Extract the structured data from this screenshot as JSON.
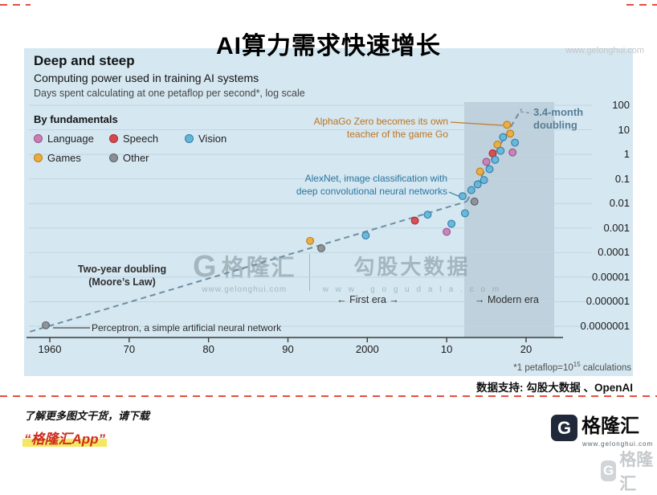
{
  "page": {
    "title": "AI算力需求快速增长",
    "corner_watermark": "www.gelonghui.com",
    "data_support": "数据支持: 勾股大数据 、OpenAI",
    "promo_line1": "了解更多图文干货，请下载",
    "promo_line2": "“格隆汇App”",
    "brand": {
      "logo": "G",
      "name": "格隆汇",
      "url": "www.gelonghui.com"
    },
    "brand_shadow": {
      "logo": "G",
      "name": "格隆汇"
    }
  },
  "watermark_center": {
    "glh_logo": "G",
    "glh_name": "格隆汇",
    "glh_url": "www.gelonghui.com",
    "gogu_name": "勾股大数据",
    "gogu_url": "w w w . g o g u d a t a . c o m"
  },
  "chart_data": {
    "type": "scatter",
    "title": "Deep and steep",
    "subtitle": "Computing power used in training AI systems",
    "unit_note": "Days spent calculating at one petaflop per second*, log scale",
    "legend_title": "By fundamentals",
    "legend_rows": [
      [
        "Language",
        "Speech",
        "Vision"
      ],
      [
        "Games",
        "Other"
      ]
    ],
    "categories": {
      "Language": {
        "fill": "#c77fb4",
        "stroke": "#9c5089"
      },
      "Speech": {
        "fill": "#d6494b",
        "stroke": "#a52b2e"
      },
      "Vision": {
        "fill": "#66b5d9",
        "stroke": "#2d7fa8"
      },
      "Games": {
        "fill": "#ecab3f",
        "stroke": "#bc7d16"
      },
      "Other": {
        "fill": "#8a8f93",
        "stroke": "#5c6064"
      }
    },
    "x_axis": {
      "ticks": [
        1960,
        1970,
        1980,
        1990,
        2000,
        2010,
        2020
      ],
      "tick_labels": [
        "1960",
        "70",
        "80",
        "90",
        "2000",
        "10",
        "20"
      ]
    },
    "y_axis": {
      "scale": "log",
      "tick_labels": [
        "100",
        "10",
        "1",
        "0.1",
        "0.01",
        "0.001",
        "0.0001",
        "0.00001",
        "0.000001",
        "0.0000001"
      ]
    },
    "modern_band": {
      "start_year": 2012.2,
      "end_year": 2023.5
    },
    "points": [
      {
        "year": 1959.5,
        "value": 1.1e-07,
        "category": "Other",
        "label": "Perceptron"
      },
      {
        "year": 1992.8,
        "value": 0.0003,
        "category": "Games"
      },
      {
        "year": 1994.2,
        "value": 0.00015,
        "category": "Other"
      },
      {
        "year": 1999.8,
        "value": 0.0005,
        "category": "Vision"
      },
      {
        "year": 2006.0,
        "value": 0.002,
        "category": "Speech"
      },
      {
        "year": 2007.6,
        "value": 0.0035,
        "category": "Vision"
      },
      {
        "year": 2010.0,
        "value": 0.0007,
        "category": "Language"
      },
      {
        "year": 2010.6,
        "value": 0.0015,
        "category": "Vision"
      },
      {
        "year": 2012.0,
        "value": 0.02,
        "category": "Vision",
        "label": "AlexNet"
      },
      {
        "year": 2012.3,
        "value": 0.004,
        "category": "Vision"
      },
      {
        "year": 2013.1,
        "value": 0.035,
        "category": "Vision"
      },
      {
        "year": 2013.5,
        "value": 0.012,
        "category": "Other"
      },
      {
        "year": 2013.9,
        "value": 0.06,
        "category": "Vision"
      },
      {
        "year": 2014.2,
        "value": 0.2,
        "category": "Games"
      },
      {
        "year": 2014.7,
        "value": 0.09,
        "category": "Vision"
      },
      {
        "year": 2015.0,
        "value": 0.5,
        "category": "Language"
      },
      {
        "year": 2015.4,
        "value": 0.25,
        "category": "Vision"
      },
      {
        "year": 2015.8,
        "value": 1.1,
        "category": "Speech"
      },
      {
        "year": 2016.1,
        "value": 0.6,
        "category": "Vision"
      },
      {
        "year": 2016.4,
        "value": 2.5,
        "category": "Games"
      },
      {
        "year": 2016.8,
        "value": 1.4,
        "category": "Vision"
      },
      {
        "year": 2017.1,
        "value": 5,
        "category": "Vision"
      },
      {
        "year": 2017.6,
        "value": 16,
        "category": "Games",
        "label": "AlphaGo Zero"
      },
      {
        "year": 2018.0,
        "value": 7,
        "category": "Games"
      },
      {
        "year": 2018.3,
        "value": 1.2,
        "category": "Language"
      },
      {
        "year": 2018.6,
        "value": 3,
        "category": "Vision"
      }
    ],
    "trend_lines": [
      {
        "name": "two-year-doubling",
        "from": {
          "year": 1957.5,
          "value": 6e-08
        },
        "to": {
          "year": 2012.5,
          "value": 0.012
        }
      },
      {
        "name": "3.4-month-doubling",
        "from": {
          "year": 2012.5,
          "value": 0.012
        },
        "to": {
          "year": 2019.4,
          "value": 70
        }
      }
    ],
    "annotations": {
      "alphago": {
        "line1": "AlphaGo Zero becomes its own",
        "line2": "teacher of the game Go"
      },
      "doubling": {
        "line1": "3.4-month",
        "line2": "doubling"
      },
      "alexnet": {
        "line1": "AlexNet, image classification with",
        "line2": "deep convolutional neural networks"
      },
      "moore": {
        "line1": "Two-year doubling",
        "line2": "(Moore’s Law)"
      },
      "perceptron": {
        "text": "Perceptron, a simple artificial neural network"
      },
      "first_era": "← First era →",
      "modern_era": "→ Modern era"
    },
    "footnote": {
      "base": "*1 petaflop=10",
      "exp": "15",
      "tail": " calculations"
    }
  }
}
